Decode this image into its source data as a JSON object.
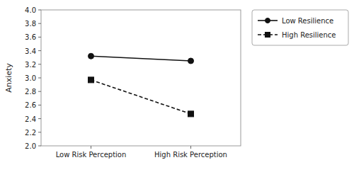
{
  "chart_data": {
    "type": "line",
    "categories": [
      "Low Risk Perception",
      "High Risk Perception"
    ],
    "series": [
      {
        "name": "Low Resilience",
        "color": "#111111",
        "marker": "circle",
        "line_style": "solid",
        "values": [
          3.32,
          3.25
        ]
      },
      {
        "name": "High Resilience",
        "color": "#111111",
        "marker": "square",
        "line_style": "dashed",
        "values": [
          2.97,
          2.47
        ]
      }
    ],
    "ylabel": "Anxiety",
    "ylim": [
      2.0,
      4.0
    ],
    "yticks": [
      {
        "value": 2.0,
        "label": "2.0"
      },
      2.2,
      2.4,
      2.6,
      2.8,
      {
        "value": 3.0,
        "label": "3.0"
      },
      3.2,
      3.4,
      3.6,
      3.8,
      {
        "value": 4.0,
        "label": "4.0"
      }
    ],
    "grid": false,
    "legend": "right"
  }
}
